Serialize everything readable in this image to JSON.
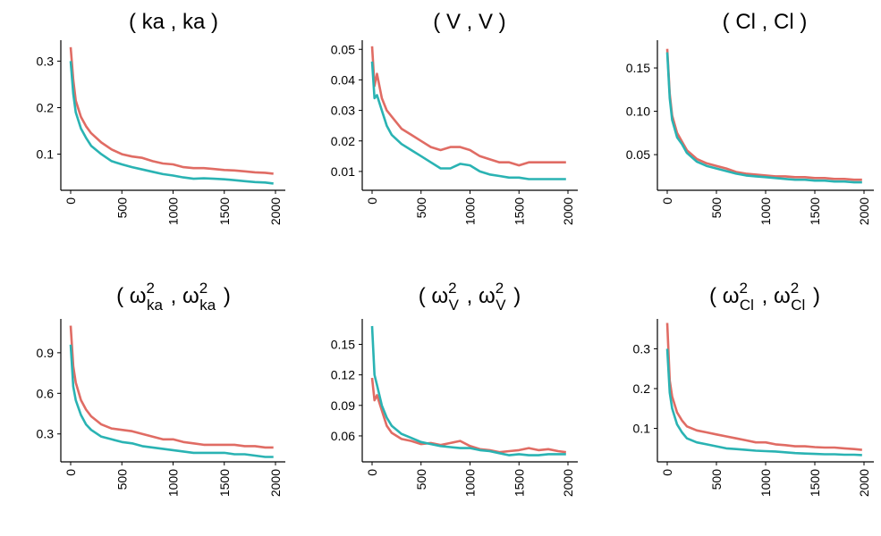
{
  "chart_data": [
    {
      "type": "line",
      "title": {
        "open": "( ",
        "sep": " , ",
        "close": " )",
        "a": {
          "base": "ka"
        },
        "b": {
          "base": "ka"
        }
      },
      "x": [
        0,
        25,
        50,
        100,
        150,
        200,
        300,
        400,
        500,
        600,
        700,
        800,
        900,
        1000,
        1100,
        1200,
        1300,
        1400,
        1500,
        1600,
        1700,
        1800,
        1900,
        1980
      ],
      "xticks": [
        "0",
        "500",
        "1000",
        "1500",
        "2000"
      ],
      "xlim": [
        0,
        2000
      ],
      "yticks": [
        0.1,
        0.2,
        0.3
      ],
      "ytick_labels": [
        "0.1",
        "0.2",
        "0.3"
      ],
      "ylim": [
        0.03,
        0.345
      ],
      "series": [
        {
          "name": "series-red",
          "color": "#E06C64",
          "values": [
            0.33,
            0.26,
            0.215,
            0.18,
            0.16,
            0.145,
            0.125,
            0.11,
            0.1,
            0.095,
            0.092,
            0.085,
            0.08,
            0.078,
            0.072,
            0.07,
            0.07,
            0.068,
            0.066,
            0.065,
            0.063,
            0.061,
            0.06,
            0.058
          ]
        },
        {
          "name": "series-teal",
          "color": "#2AB3B3",
          "values": [
            0.3,
            0.23,
            0.19,
            0.155,
            0.135,
            0.118,
            0.1,
            0.085,
            0.078,
            0.072,
            0.067,
            0.062,
            0.057,
            0.054,
            0.05,
            0.047,
            0.048,
            0.047,
            0.046,
            0.044,
            0.042,
            0.04,
            0.039,
            0.037
          ]
        }
      ]
    },
    {
      "type": "line",
      "title": {
        "open": "( ",
        "sep": " , ",
        "close": " )",
        "a": {
          "base": "V"
        },
        "b": {
          "base": "V"
        }
      },
      "x": [
        0,
        25,
        50,
        100,
        150,
        200,
        300,
        400,
        500,
        600,
        700,
        800,
        900,
        1000,
        1100,
        1200,
        1300,
        1400,
        1500,
        1600,
        1700,
        1800,
        1900,
        1980
      ],
      "xticks": [
        "0",
        "500",
        "1000",
        "1500",
        "2000"
      ],
      "xlim": [
        0,
        2000
      ],
      "yticks": [
        0.01,
        0.02,
        0.03,
        0.04,
        0.05
      ],
      "ytick_labels": [
        "0.01",
        "0.02",
        "0.03",
        "0.04",
        "0.05"
      ],
      "ylim": [
        0.005,
        0.053
      ],
      "series": [
        {
          "name": "series-red",
          "color": "#E06C64",
          "values": [
            0.051,
            0.038,
            0.042,
            0.034,
            0.03,
            0.028,
            0.024,
            0.022,
            0.02,
            0.018,
            0.017,
            0.018,
            0.018,
            0.017,
            0.015,
            0.014,
            0.013,
            0.013,
            0.012,
            0.013,
            0.013,
            0.013,
            0.013,
            0.013
          ]
        },
        {
          "name": "series-teal",
          "color": "#2AB3B3",
          "values": [
            0.046,
            0.034,
            0.035,
            0.03,
            0.025,
            0.022,
            0.019,
            0.017,
            0.015,
            0.013,
            0.011,
            0.011,
            0.0125,
            0.012,
            0.01,
            0.009,
            0.0085,
            0.008,
            0.008,
            0.0075,
            0.0075,
            0.0075,
            0.0075,
            0.0075
          ]
        }
      ]
    },
    {
      "type": "line",
      "title": {
        "open": "( ",
        "sep": " , ",
        "close": " )",
        "a": {
          "base": "Cl"
        },
        "b": {
          "base": "Cl"
        }
      },
      "x": [
        0,
        25,
        50,
        100,
        150,
        200,
        300,
        400,
        500,
        600,
        700,
        800,
        900,
        1000,
        1100,
        1200,
        1300,
        1400,
        1500,
        1600,
        1700,
        1800,
        1900,
        1980
      ],
      "xticks": [
        "0",
        "500",
        "1000",
        "1500",
        "2000"
      ],
      "xlim": [
        0,
        2000
      ],
      "yticks": [
        0.05,
        0.1,
        0.15
      ],
      "ytick_labels": [
        "0.05",
        "0.10",
        "0.15"
      ],
      "ylim": [
        0.013,
        0.182
      ],
      "series": [
        {
          "name": "series-red",
          "color": "#E06C64",
          "values": [
            0.172,
            0.12,
            0.095,
            0.075,
            0.065,
            0.055,
            0.045,
            0.04,
            0.037,
            0.034,
            0.03,
            0.028,
            0.027,
            0.026,
            0.025,
            0.025,
            0.024,
            0.024,
            0.023,
            0.023,
            0.022,
            0.022,
            0.021,
            0.021
          ]
        },
        {
          "name": "series-teal",
          "color": "#2AB3B3",
          "values": [
            0.168,
            0.115,
            0.09,
            0.07,
            0.062,
            0.052,
            0.042,
            0.037,
            0.034,
            0.031,
            0.028,
            0.026,
            0.025,
            0.024,
            0.023,
            0.022,
            0.021,
            0.021,
            0.02,
            0.02,
            0.019,
            0.019,
            0.018,
            0.018
          ]
        }
      ]
    },
    {
      "type": "line",
      "title": {
        "open": "( ",
        "sep": " , ",
        "close": " )",
        "a": {
          "base": "ω",
          "sup": "2",
          "sub": "ka"
        },
        "b": {
          "base": "ω",
          "sup": "2",
          "sub": "ka"
        }
      },
      "x": [
        0,
        25,
        50,
        100,
        150,
        200,
        300,
        400,
        500,
        600,
        700,
        800,
        900,
        1000,
        1100,
        1200,
        1300,
        1400,
        1500,
        1600,
        1700,
        1800,
        1900,
        1980
      ],
      "xticks": [
        "0",
        "500",
        "1000",
        "1500",
        "2000"
      ],
      "xlim": [
        0,
        2000
      ],
      "yticks": [
        0.3,
        0.6,
        0.9
      ],
      "ytick_labels": [
        "0.3",
        "0.6",
        "0.9"
      ],
      "ylim": [
        0.12,
        1.15
      ],
      "series": [
        {
          "name": "series-red",
          "color": "#E06C64",
          "values": [
            1.1,
            0.8,
            0.68,
            0.55,
            0.48,
            0.43,
            0.37,
            0.34,
            0.33,
            0.32,
            0.3,
            0.28,
            0.26,
            0.26,
            0.24,
            0.23,
            0.22,
            0.22,
            0.22,
            0.22,
            0.21,
            0.21,
            0.2,
            0.2
          ]
        },
        {
          "name": "series-teal",
          "color": "#2AB3B3",
          "values": [
            0.96,
            0.65,
            0.55,
            0.44,
            0.37,
            0.33,
            0.28,
            0.26,
            0.24,
            0.23,
            0.21,
            0.2,
            0.19,
            0.18,
            0.17,
            0.16,
            0.16,
            0.16,
            0.16,
            0.15,
            0.15,
            0.14,
            0.13,
            0.13
          ]
        }
      ]
    },
    {
      "type": "line",
      "title": {
        "open": "( ",
        "sep": " , ",
        "close": " )",
        "a": {
          "base": "ω",
          "sup": "2",
          "sub": "V"
        },
        "b": {
          "base": "ω",
          "sup": "2",
          "sub": "V"
        }
      },
      "x": [
        0,
        25,
        50,
        100,
        150,
        200,
        300,
        400,
        500,
        600,
        700,
        800,
        900,
        1000,
        1100,
        1200,
        1300,
        1400,
        1500,
        1600,
        1700,
        1800,
        1900,
        1980
      ],
      "xticks": [
        "0",
        "500",
        "1000",
        "1500",
        "2000"
      ],
      "xlim": [
        0,
        2000
      ],
      "yticks": [
        0.06,
        0.09,
        0.12,
        0.15
      ],
      "ytick_labels": [
        "0.06",
        "0.09",
        "0.12",
        "0.15"
      ],
      "ylim": [
        0.038,
        0.175
      ],
      "series": [
        {
          "name": "series-red",
          "color": "#E06C64",
          "values": [
            0.117,
            0.095,
            0.1,
            0.085,
            0.07,
            0.063,
            0.057,
            0.055,
            0.052,
            0.053,
            0.051,
            0.053,
            0.055,
            0.05,
            0.047,
            0.046,
            0.044,
            0.045,
            0.046,
            0.048,
            0.046,
            0.047,
            0.045,
            0.044
          ]
        },
        {
          "name": "series-teal",
          "color": "#2AB3B3",
          "values": [
            0.168,
            0.12,
            0.11,
            0.09,
            0.078,
            0.07,
            0.062,
            0.058,
            0.054,
            0.052,
            0.05,
            0.049,
            0.048,
            0.048,
            0.046,
            0.045,
            0.043,
            0.041,
            0.042,
            0.041,
            0.041,
            0.042,
            0.042,
            0.042
          ]
        }
      ]
    },
    {
      "type": "line",
      "title": {
        "open": "( ",
        "sep": " , ",
        "close": " )",
        "a": {
          "base": "ω",
          "sup": "2",
          "sub": "Cl"
        },
        "b": {
          "base": "ω",
          "sup": "2",
          "sub": "Cl"
        }
      },
      "x": [
        0,
        25,
        50,
        100,
        150,
        200,
        300,
        400,
        500,
        600,
        700,
        800,
        900,
        1000,
        1100,
        1200,
        1300,
        1400,
        1500,
        1600,
        1700,
        1800,
        1900,
        1980
      ],
      "xticks": [
        "0",
        "500",
        "1000",
        "1500",
        "2000"
      ],
      "xlim": [
        0,
        2000
      ],
      "yticks": [
        0.1,
        0.2,
        0.3
      ],
      "ytick_labels": [
        "0.1",
        "0.2",
        "0.3"
      ],
      "ylim": [
        0.025,
        0.375
      ],
      "series": [
        {
          "name": "series-red",
          "color": "#E06C64",
          "values": [
            0.365,
            0.22,
            0.18,
            0.14,
            0.12,
            0.105,
            0.095,
            0.09,
            0.085,
            0.08,
            0.075,
            0.07,
            0.065,
            0.065,
            0.06,
            0.058,
            0.055,
            0.055,
            0.053,
            0.052,
            0.052,
            0.05,
            0.048,
            0.046
          ]
        },
        {
          "name": "series-teal",
          "color": "#2AB3B3",
          "values": [
            0.3,
            0.19,
            0.15,
            0.11,
            0.09,
            0.075,
            0.065,
            0.06,
            0.055,
            0.05,
            0.048,
            0.046,
            0.044,
            0.043,
            0.042,
            0.04,
            0.038,
            0.037,
            0.036,
            0.035,
            0.035,
            0.034,
            0.034,
            0.033
          ]
        }
      ]
    }
  ]
}
